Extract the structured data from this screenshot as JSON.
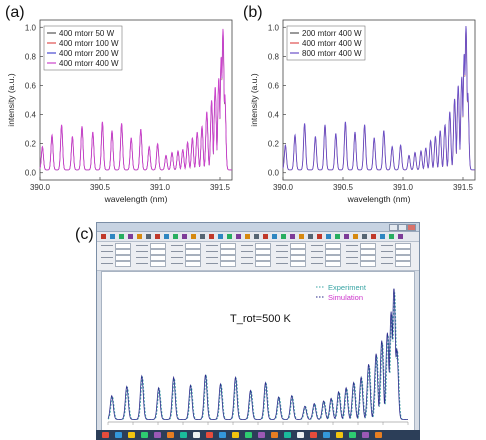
{
  "panels": {
    "a": {
      "label": "(a)"
    },
    "b": {
      "label": "(b)"
    },
    "c": {
      "label": "(c)"
    }
  },
  "chart_data": [
    {
      "type": "line",
      "panel": "a",
      "xlabel": "wavelength (nm)",
      "ylabel": "intensity (a.u.)",
      "xlim": [
        390.0,
        391.6
      ],
      "ylim": [
        -0.05,
        1.05
      ],
      "x_ticks": [
        "390.0",
        "390.5",
        "391.0",
        "391.5"
      ],
      "y_ticks": [
        "0.0",
        "0.2",
        "0.4",
        "0.6",
        "0.8",
        "1.0"
      ],
      "legend_position": "top-left",
      "series": [
        {
          "name": "400 mtorr 50 W",
          "color": "#555555"
        },
        {
          "name": "400 mtorr 100 W",
          "color": "#e05050"
        },
        {
          "name": "400 mtorr 200 W",
          "color": "#4a4ad0"
        },
        {
          "name": "400 mtorr 400 W",
          "color": "#cc44cc"
        }
      ],
      "peaks": {
        "x": [
          390.02,
          390.1,
          390.18,
          390.27,
          390.35,
          390.44,
          390.52,
          390.6,
          390.68,
          390.76,
          390.84,
          390.91,
          390.98,
          391.05,
          391.1,
          391.15,
          391.19,
          391.23,
          391.27,
          391.31,
          391.35,
          391.39,
          391.43,
          391.46,
          391.49,
          391.51,
          391.525,
          391.54
        ],
        "y": [
          0.16,
          0.24,
          0.31,
          0.23,
          0.3,
          0.26,
          0.33,
          0.27,
          0.32,
          0.22,
          0.28,
          0.16,
          0.18,
          0.1,
          0.12,
          0.13,
          0.14,
          0.19,
          0.22,
          0.26,
          0.3,
          0.4,
          0.48,
          0.57,
          0.63,
          0.78,
          0.97,
          0.52
        ]
      }
    },
    {
      "type": "line",
      "panel": "b",
      "xlabel": "wavelength (nm)",
      "ylabel": "intensity (a.u.)",
      "xlim": [
        390.0,
        391.6
      ],
      "ylim": [
        -0.05,
        1.05
      ],
      "x_ticks": [
        "390.0",
        "390.5",
        "391.0",
        "391.5"
      ],
      "y_ticks": [
        "0.0",
        "0.2",
        "0.4",
        "0.6",
        "0.8",
        "1.0"
      ],
      "legend_position": "top-left",
      "series": [
        {
          "name": "200 mtorr 400 W",
          "color": "#555555"
        },
        {
          "name": "400 mtorr 400 W",
          "color": "#e05050"
        },
        {
          "name": "800 mtorr 400 W",
          "color": "#6a50c8"
        }
      ],
      "peaks": {
        "x": [
          390.02,
          390.1,
          390.18,
          390.27,
          390.35,
          390.44,
          390.52,
          390.6,
          390.68,
          390.76,
          390.84,
          390.91,
          390.98,
          391.05,
          391.1,
          391.15,
          391.19,
          391.23,
          391.27,
          391.31,
          391.35,
          391.39,
          391.43,
          391.46,
          391.49,
          391.51,
          391.525,
          391.54
        ],
        "y": [
          0.17,
          0.24,
          0.32,
          0.23,
          0.31,
          0.25,
          0.33,
          0.26,
          0.31,
          0.22,
          0.27,
          0.16,
          0.17,
          0.1,
          0.12,
          0.13,
          0.15,
          0.2,
          0.23,
          0.27,
          0.31,
          0.4,
          0.49,
          0.58,
          0.64,
          0.8,
          0.99,
          0.53
        ]
      }
    },
    {
      "type": "line",
      "panel": "c",
      "annotation": "T_rot=500 K",
      "legend_position": "top-right",
      "series": [
        {
          "name": "Experiment",
          "color": "#3aa5a5",
          "dash": "dashed"
        },
        {
          "name": "Simulation",
          "color": "#2a2a8a",
          "label_color": "#cc33cc"
        }
      ],
      "x_axis": {
        "xlim": [
          390.0,
          391.6
        ]
      },
      "peaks": {
        "x": [
          390.02,
          390.1,
          390.18,
          390.27,
          390.35,
          390.44,
          390.52,
          390.6,
          390.68,
          390.76,
          390.84,
          390.91,
          390.98,
          391.05,
          391.1,
          391.15,
          391.19,
          391.23,
          391.27,
          391.31,
          391.35,
          391.39,
          391.43,
          391.46,
          391.49,
          391.51,
          391.525,
          391.54
        ],
        "y": [
          0.18,
          0.25,
          0.33,
          0.24,
          0.32,
          0.26,
          0.34,
          0.27,
          0.32,
          0.22,
          0.28,
          0.17,
          0.18,
          0.1,
          0.12,
          0.14,
          0.16,
          0.21,
          0.24,
          0.28,
          0.32,
          0.42,
          0.5,
          0.6,
          0.66,
          0.82,
          1.0,
          0.54
        ]
      }
    }
  ],
  "colors": {
    "axis": "#444444",
    "app_frame": "#7b8ea6",
    "taskbar": "#2c3e58"
  }
}
